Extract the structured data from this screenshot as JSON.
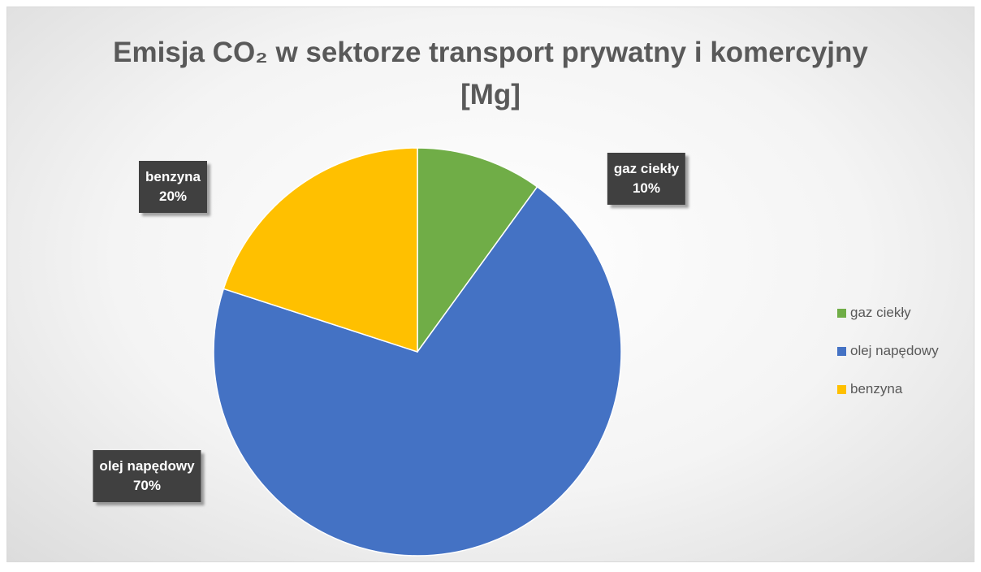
{
  "chart_data": {
    "type": "pie",
    "title": "Emisja CO₂ w sektorze transport prywatny i komercyjny [Mg]",
    "categories": [
      "gaz ciekły",
      "olej napędowy",
      "benzyna"
    ],
    "values": [
      10,
      70,
      20
    ],
    "value_labels": [
      "10%",
      "70%",
      "20%"
    ],
    "colors": [
      "#70ad47",
      "#4472c4",
      "#ffc000"
    ],
    "legend": "right"
  }
}
